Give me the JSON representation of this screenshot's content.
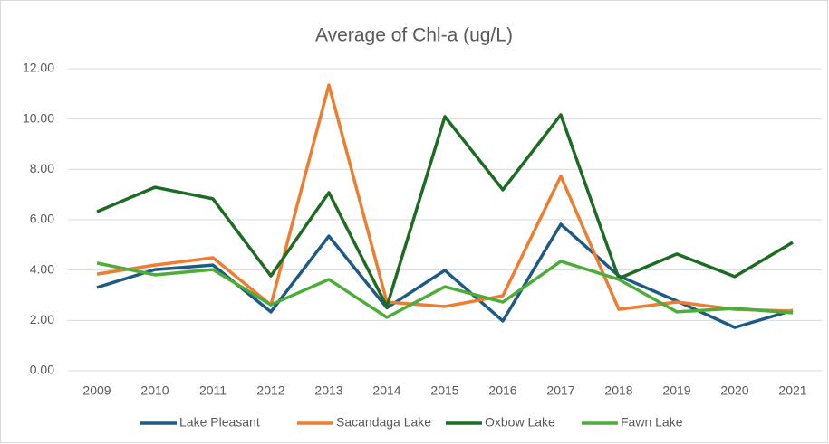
{
  "chart_data": {
    "type": "line",
    "title": "Average of Chl-a (ug/L)",
    "categories": [
      "2009",
      "2010",
      "2011",
      "2012",
      "2013",
      "2014",
      "2015",
      "2016",
      "2017",
      "2018",
      "2019",
      "2020",
      "2021"
    ],
    "series": [
      {
        "name": "Lake Pleasant",
        "color": "#1f5a85",
        "values": [
          3.31,
          4.02,
          4.2,
          2.34,
          5.35,
          2.5,
          3.99,
          1.98,
          5.82,
          3.77,
          2.77,
          1.72,
          2.4
        ]
      },
      {
        "name": "Sacandaga Lake",
        "color": "#ed7d31",
        "values": [
          3.84,
          4.2,
          4.49,
          2.62,
          11.35,
          2.73,
          2.55,
          2.98,
          7.73,
          2.44,
          2.73,
          2.44,
          2.37
        ]
      },
      {
        "name": "Oxbow Lake",
        "color": "#1e6b24",
        "values": [
          6.32,
          7.29,
          6.83,
          3.77,
          7.08,
          2.55,
          10.1,
          7.19,
          10.17,
          3.67,
          4.64,
          3.74,
          5.1
        ]
      },
      {
        "name": "Fawn Lake",
        "color": "#4eac3a",
        "values": [
          4.28,
          3.81,
          4.02,
          2.62,
          3.63,
          2.12,
          3.34,
          2.73,
          4.35,
          3.63,
          2.34,
          2.48,
          2.3
        ]
      }
    ],
    "ylim": [
      0,
      12
    ],
    "yticks": [
      {
        "value": 0,
        "label": "0.00"
      },
      {
        "value": 2,
        "label": "2.00"
      },
      {
        "value": 4,
        "label": "4.00"
      },
      {
        "value": 6,
        "label": "6.00"
      },
      {
        "value": 8,
        "label": "8.00"
      },
      {
        "value": 10,
        "label": "10.00"
      },
      {
        "value": 12,
        "label": "12.00"
      }
    ],
    "grid": true,
    "legend": "bottom"
  }
}
